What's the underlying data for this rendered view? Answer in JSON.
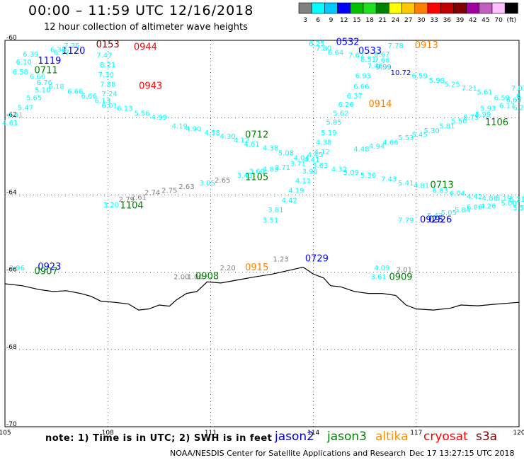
{
  "header": {
    "title": "00:00 – 11:59 UTC 12/16/2018",
    "subtitle": "12 hour collection of altimeter wave heights"
  },
  "color_scale": {
    "unit_label": "(ft)",
    "bins": [
      {
        "label": "3",
        "color": "#808080"
      },
      {
        "label": "6",
        "color": "#00ffff"
      },
      {
        "label": "9",
        "color": "#00c8ff"
      },
      {
        "label": "12",
        "color": "#0000ff"
      },
      {
        "label": "15",
        "color": "#00c000"
      },
      {
        "label": "18",
        "color": "#20e020"
      },
      {
        "label": "21",
        "color": "#008000"
      },
      {
        "label": "24",
        "color": "#ffff00"
      },
      {
        "label": "27",
        "color": "#ffc800"
      },
      {
        "label": "30",
        "color": "#ff8000"
      },
      {
        "label": "33",
        "color": "#ff0000"
      },
      {
        "label": "36",
        "color": "#c00000"
      },
      {
        "label": "39",
        "color": "#800000"
      },
      {
        "label": "42",
        "color": "#a000a0"
      },
      {
        "label": "45",
        "color": "#c060c0"
      },
      {
        "label": "70",
        "color": "#ffc0ff"
      },
      {
        "label": "",
        "color": "#000000"
      }
    ]
  },
  "axes": {
    "lon_min": 105,
    "lon_max": 120,
    "lat_min": -70,
    "lat_max": -60,
    "lon_ticks": [
      {
        "value": 105,
        "label": "105"
      },
      {
        "value": 108,
        "label": "108"
      },
      {
        "value": 111,
        "label": "111"
      },
      {
        "value": 114,
        "label": "114"
      },
      {
        "value": 117,
        "label": "117"
      },
      {
        "value": 120,
        "label": "120"
      }
    ],
    "lat_ticks": [
      {
        "value": -60,
        "label": "-60"
      },
      {
        "value": -62,
        "label": "-62"
      },
      {
        "value": -64,
        "label": "-64"
      },
      {
        "value": -66,
        "label": "-66"
      },
      {
        "value": -68,
        "label": "-68"
      },
      {
        "value": -70,
        "label": "-70"
      }
    ]
  },
  "coastline": [
    [
      105.0,
      -66.3
    ],
    [
      105.5,
      -66.35
    ],
    [
      106.0,
      -66.45
    ],
    [
      106.4,
      -66.5
    ],
    [
      106.8,
      -66.48
    ],
    [
      107.2,
      -66.55
    ],
    [
      107.5,
      -66.62
    ],
    [
      107.8,
      -66.75
    ],
    [
      108.2,
      -66.78
    ],
    [
      108.6,
      -66.82
    ],
    [
      108.9,
      -66.98
    ],
    [
      109.2,
      -66.95
    ],
    [
      109.5,
      -66.85
    ],
    [
      109.8,
      -66.88
    ],
    [
      110.0,
      -66.72
    ],
    [
      110.3,
      -66.55
    ],
    [
      110.6,
      -66.5
    ],
    [
      110.9,
      -66.25
    ],
    [
      111.3,
      -66.28
    ],
    [
      111.8,
      -66.2
    ],
    [
      112.3,
      -66.12
    ],
    [
      112.8,
      -66.05
    ],
    [
      113.3,
      -65.95
    ],
    [
      113.7,
      -65.87
    ],
    [
      114.0,
      -66.05
    ],
    [
      114.3,
      -66.15
    ],
    [
      114.5,
      -66.35
    ],
    [
      114.8,
      -66.38
    ],
    [
      115.2,
      -66.5
    ],
    [
      115.6,
      -66.55
    ],
    [
      116.0,
      -66.55
    ],
    [
      116.4,
      -66.6
    ],
    [
      116.7,
      -66.85
    ],
    [
      117.0,
      -66.95
    ],
    [
      117.5,
      -66.98
    ],
    [
      118.0,
      -66.93
    ],
    [
      118.3,
      -66.85
    ],
    [
      118.8,
      -66.87
    ],
    [
      119.3,
      -66.83
    ],
    [
      119.7,
      -66.8
    ],
    [
      120.0,
      -66.78
    ]
  ],
  "labels": [
    {
      "text": "0153",
      "lon": 108.0,
      "lat": -60.18,
      "color": "#800000"
    },
    {
      "text": "0944",
      "lon": 109.1,
      "lat": -60.25,
      "color": "#ff0000"
    },
    {
      "text": "1120",
      "lon": 107.0,
      "lat": -60.35,
      "color": "#0000ff"
    },
    {
      "text": "1119",
      "lon": 106.3,
      "lat": -60.6,
      "color": "#0000ff"
    },
    {
      "text": "0711",
      "lon": 106.2,
      "lat": -60.85,
      "color": "#008000"
    },
    {
      "text": "0943",
      "lon": 109.25,
      "lat": -61.25,
      "color": "#ff0000"
    },
    {
      "text": "7.25",
      "lon": 106.95,
      "lat": -60.2,
      "color": "#00ffff"
    },
    {
      "text": "6.36",
      "lon": 106.55,
      "lat": -60.3,
      "color": "#00ffff"
    },
    {
      "text": "6.77",
      "lon": 106.65,
      "lat": -60.38,
      "color": "#00ffff"
    },
    {
      "text": "6.39",
      "lon": 105.75,
      "lat": -60.42,
      "color": "#00ffff"
    },
    {
      "text": "6.10",
      "lon": 105.55,
      "lat": -60.62,
      "color": "#00ffff"
    },
    {
      "text": "7.47",
      "lon": 107.9,
      "lat": -60.45,
      "color": "#00ffff"
    },
    {
      "text": "8.21",
      "lon": 108.0,
      "lat": -60.7,
      "color": "#00ffff"
    },
    {
      "text": "7.30",
      "lon": 107.95,
      "lat": -60.95,
      "color": "#00ffff"
    },
    {
      "text": "7.88",
      "lon": 108.0,
      "lat": -61.2,
      "color": "#00ffff"
    },
    {
      "text": "7.24",
      "lon": 108.05,
      "lat": -61.45,
      "color": "#00ffff"
    },
    {
      "text": "6.58",
      "lon": 105.45,
      "lat": -60.88,
      "color": "#00ffff"
    },
    {
      "text": "6.66",
      "lon": 105.95,
      "lat": -61.0,
      "color": "#00ffff"
    },
    {
      "text": "6.76",
      "lon": 106.15,
      "lat": -61.15,
      "color": "#00ffff"
    },
    {
      "text": "6.18",
      "lon": 106.5,
      "lat": -61.25,
      "color": "#00ffff"
    },
    {
      "text": "5.10",
      "lon": 106.1,
      "lat": -61.35,
      "color": "#00ffff"
    },
    {
      "text": "6.66",
      "lon": 107.05,
      "lat": -61.38,
      "color": "#00ffff"
    },
    {
      "text": "6.66",
      "lon": 107.45,
      "lat": -61.5,
      "color": "#00ffff"
    },
    {
      "text": "5.65",
      "lon": 105.85,
      "lat": -61.55,
      "color": "#00ffff"
    },
    {
      "text": "6.13",
      "lon": 107.85,
      "lat": -61.62,
      "color": "#00ffff"
    },
    {
      "text": "6.01",
      "lon": 108.05,
      "lat": -61.75,
      "color": "#00ffff"
    },
    {
      "text": "6.13",
      "lon": 108.5,
      "lat": -61.82,
      "color": "#00ffff"
    },
    {
      "text": "5.47",
      "lon": 105.6,
      "lat": -61.8,
      "color": "#00ffff"
    },
    {
      "text": "5.56",
      "lon": 109.0,
      "lat": -61.95,
      "color": "#00ffff"
    },
    {
      "text": "4.99",
      "lon": 109.5,
      "lat": -62.05,
      "color": "#00ffff"
    },
    {
      "text": "4.41",
      "lon": 105.3,
      "lat": -62.0,
      "color": "#00ffff"
    },
    {
      "text": "4.61",
      "lon": 105.15,
      "lat": -62.2,
      "color": "#00ffff"
    },
    {
      "text": "4.19",
      "lon": 110.1,
      "lat": -62.28,
      "color": "#00ffff"
    },
    {
      "text": "4.90",
      "lon": 110.5,
      "lat": -62.35,
      "color": "#00ffff"
    },
    {
      "text": "4.58",
      "lon": 111.05,
      "lat": -62.45,
      "color": "#00ffff"
    },
    {
      "text": "4.30",
      "lon": 111.5,
      "lat": -62.55,
      "color": "#00ffff"
    },
    {
      "text": "4.12",
      "lon": 111.9,
      "lat": -62.65,
      "color": "#00ffff"
    },
    {
      "text": "0712",
      "lon": 112.35,
      "lat": -62.52,
      "color": "#008000"
    },
    {
      "text": "4.61",
      "lon": 112.2,
      "lat": -62.75,
      "color": "#00ffff"
    },
    {
      "text": "4.38",
      "lon": 112.75,
      "lat": -62.85,
      "color": "#00ffff"
    },
    {
      "text": "5.08",
      "lon": 113.2,
      "lat": -62.98,
      "color": "#00ffff"
    },
    {
      "text": "4.04",
      "lon": 113.65,
      "lat": -63.1,
      "color": "#00ffff"
    },
    {
      "text": "4.41",
      "lon": 113.95,
      "lat": -63.15,
      "color": "#00ffff"
    },
    {
      "text": "3.71",
      "lon": 113.55,
      "lat": -63.25,
      "color": "#00ffff"
    },
    {
      "text": "3.71",
      "lon": 113.1,
      "lat": -63.35,
      "color": "#00ffff"
    },
    {
      "text": "4.83",
      "lon": 112.75,
      "lat": -63.4,
      "color": "#00ffff"
    },
    {
      "text": "3.60",
      "lon": 112.35,
      "lat": -63.45,
      "color": "#00ffff"
    },
    {
      "text": "3.43",
      "lon": 112.0,
      "lat": -63.55,
      "color": "#00ffff"
    },
    {
      "text": "1105",
      "lon": 112.35,
      "lat": -63.62,
      "color": "#008000"
    },
    {
      "text": "3.96",
      "lon": 113.9,
      "lat": -63.45,
      "color": "#00ffff"
    },
    {
      "text": "4.11",
      "lon": 113.7,
      "lat": -63.7,
      "color": "#00ffff"
    },
    {
      "text": "4.19",
      "lon": 113.5,
      "lat": -63.95,
      "color": "#00ffff"
    },
    {
      "text": "4.42",
      "lon": 113.3,
      "lat": -64.2,
      "color": "#00ffff"
    },
    {
      "text": "3.81",
      "lon": 112.9,
      "lat": -64.45,
      "color": "#00ffff"
    },
    {
      "text": "3.51",
      "lon": 112.75,
      "lat": -64.72,
      "color": "#00ffff"
    },
    {
      "text": "3.05",
      "lon": 110.9,
      "lat": -63.75,
      "color": "#00ffff"
    },
    {
      "text": "2.65",
      "lon": 111.35,
      "lat": -63.68,
      "color": "#808080"
    },
    {
      "text": "2.63",
      "lon": 110.3,
      "lat": -63.85,
      "color": "#808080"
    },
    {
      "text": "2.75",
      "lon": 109.8,
      "lat": -63.95,
      "color": "#808080"
    },
    {
      "text": "2.74",
      "lon": 109.3,
      "lat": -64.0,
      "color": "#808080"
    },
    {
      "text": "2.61",
      "lon": 108.9,
      "lat": -64.12,
      "color": "#808080"
    },
    {
      "text": "2.79",
      "lon": 108.55,
      "lat": -64.18,
      "color": "#808080"
    },
    {
      "text": "3.20",
      "lon": 108.1,
      "lat": -64.32,
      "color": "#00ffff"
    },
    {
      "text": "1104",
      "lon": 108.7,
      "lat": -64.35,
      "color": "#008000"
    },
    {
      "text": "6.25",
      "lon": 114.1,
      "lat": -60.15,
      "color": "#00ffff"
    },
    {
      "text": "0532",
      "lon": 115.0,
      "lat": -60.12,
      "color": "#0000ff"
    },
    {
      "text": "7.78",
      "lon": 116.4,
      "lat": -60.2,
      "color": "#00ffff"
    },
    {
      "text": "0913",
      "lon": 117.3,
      "lat": -60.2,
      "color": "#ff8000"
    },
    {
      "text": "7.80",
      "lon": 114.3,
      "lat": -60.27,
      "color": "#00ffff"
    },
    {
      "text": "6.64",
      "lon": 114.65,
      "lat": -60.38,
      "color": "#00ffff"
    },
    {
      "text": "0533",
      "lon": 115.65,
      "lat": -60.35,
      "color": "#0000ff"
    },
    {
      "text": "7.67",
      "lon": 115.25,
      "lat": -60.45,
      "color": "#00ffff"
    },
    {
      "text": "8.67",
      "lon": 116.0,
      "lat": -60.42,
      "color": "#00ffff"
    },
    {
      "text": "8.51",
      "lon": 115.6,
      "lat": -60.55,
      "color": "#00ffff"
    },
    {
      "text": "7.66",
      "lon": 116.0,
      "lat": -60.58,
      "color": "#00ffff"
    },
    {
      "text": "7.46",
      "lon": 115.8,
      "lat": -60.72,
      "color": "#00ffff"
    },
    {
      "text": "9.99",
      "lon": 116.05,
      "lat": -60.75,
      "color": "#00c8ff"
    },
    {
      "text": "10.72",
      "lon": 116.55,
      "lat": -60.9,
      "color": "#0000ff"
    },
    {
      "text": "6.59",
      "lon": 117.1,
      "lat": -60.98,
      "color": "#00ffff"
    },
    {
      "text": "6.93",
      "lon": 115.45,
      "lat": -60.98,
      "color": "#00ffff"
    },
    {
      "text": "5.98",
      "lon": 117.6,
      "lat": -61.1,
      "color": "#00ffff"
    },
    {
      "text": "5.25",
      "lon": 118.05,
      "lat": -61.2,
      "color": "#00ffff"
    },
    {
      "text": "6.66",
      "lon": 115.4,
      "lat": -61.25,
      "color": "#00ffff"
    },
    {
      "text": "7.21",
      "lon": 118.55,
      "lat": -61.3,
      "color": "#00ffff"
    },
    {
      "text": "6.37",
      "lon": 115.2,
      "lat": -61.5,
      "color": "#00ffff"
    },
    {
      "text": "5.61",
      "lon": 119.0,
      "lat": -61.4,
      "color": "#00ffff"
    },
    {
      "text": "7.03",
      "lon": 120.0,
      "lat": -61.3,
      "color": "#00ffff"
    },
    {
      "text": "6.59",
      "lon": 119.5,
      "lat": -61.55,
      "color": "#00ffff"
    },
    {
      "text": "6.69",
      "lon": 119.85,
      "lat": -61.6,
      "color": "#00ffff"
    },
    {
      "text": "6.11",
      "lon": 120.15,
      "lat": -61.5,
      "color": "#00ffff"
    },
    {
      "text": "6.26",
      "lon": 114.95,
      "lat": -61.72,
      "color": "#00ffff"
    },
    {
      "text": "0914",
      "lon": 115.95,
      "lat": -61.72,
      "color": "#ff8000"
    },
    {
      "text": "5.93",
      "lon": 119.1,
      "lat": -61.82,
      "color": "#00ffff"
    },
    {
      "text": "6.17",
      "lon": 119.65,
      "lat": -61.75,
      "color": "#00ffff"
    },
    {
      "text": "6.29",
      "lon": 120.05,
      "lat": -61.8,
      "color": "#00ffff"
    },
    {
      "text": "5.76",
      "lon": 120.4,
      "lat": -61.9,
      "color": "#00ffff"
    },
    {
      "text": "5.62",
      "lon": 114.8,
      "lat": -61.95,
      "color": "#00ffff"
    },
    {
      "text": "6.75",
      "lon": 118.6,
      "lat": -62.05,
      "color": "#00ffff"
    },
    {
      "text": "5.99",
      "lon": 118.95,
      "lat": -61.98,
      "color": "#00ffff"
    },
    {
      "text": "5.50",
      "lon": 118.25,
      "lat": -62.15,
      "color": "#00ffff"
    },
    {
      "text": "1106",
      "lon": 119.35,
      "lat": -62.2,
      "color": "#008000"
    },
    {
      "text": "5.85",
      "lon": 114.6,
      "lat": -62.18,
      "color": "#00ffff"
    },
    {
      "text": "5.81",
      "lon": 117.9,
      "lat": -62.28,
      "color": "#00ffff"
    },
    {
      "text": "5.30",
      "lon": 117.45,
      "lat": -62.4,
      "color": "#00ffff"
    },
    {
      "text": "5.45",
      "lon": 117.1,
      "lat": -62.5,
      "color": "#00ffff"
    },
    {
      "text": "5.19",
      "lon": 114.45,
      "lat": -62.45,
      "color": "#00ffff"
    },
    {
      "text": "5.53",
      "lon": 116.7,
      "lat": -62.58,
      "color": "#00ffff"
    },
    {
      "text": "4.66",
      "lon": 116.25,
      "lat": -62.7,
      "color": "#00ffff"
    },
    {
      "text": "4.38",
      "lon": 114.3,
      "lat": -62.7,
      "color": "#00ffff"
    },
    {
      "text": "4.94",
      "lon": 115.85,
      "lat": -62.8,
      "color": "#00ffff"
    },
    {
      "text": "4.48",
      "lon": 115.4,
      "lat": -62.88,
      "color": "#00ffff"
    },
    {
      "text": "4.12",
      "lon": 114.25,
      "lat": -62.95,
      "color": "#00ffff"
    },
    {
      "text": "4.45",
      "lon": 114.05,
      "lat": -63.02,
      "color": "#00ffff"
    },
    {
      "text": "3.63",
      "lon": 114.2,
      "lat": -63.3,
      "color": "#00ffff"
    },
    {
      "text": "4.32",
      "lon": 114.75,
      "lat": -63.4,
      "color": "#00ffff"
    },
    {
      "text": "5.09",
      "lon": 115.1,
      "lat": -63.48,
      "color": "#00ffff"
    },
    {
      "text": "5.36",
      "lon": 115.6,
      "lat": -63.55,
      "color": "#00ffff"
    },
    {
      "text": "7.43",
      "lon": 116.2,
      "lat": -63.65,
      "color": "#00ffff"
    },
    {
      "text": "5.41",
      "lon": 116.7,
      "lat": -63.75,
      "color": "#00ffff"
    },
    {
      "text": "4.81",
      "lon": 117.15,
      "lat": -63.82,
      "color": "#00ffff"
    },
    {
      "text": "0713",
      "lon": 117.75,
      "lat": -63.82,
      "color": "#008000"
    },
    {
      "text": "6.63",
      "lon": 117.7,
      "lat": -63.95,
      "color": "#00ffff"
    },
    {
      "text": "6.04",
      "lon": 118.2,
      "lat": -64.02,
      "color": "#00ffff"
    },
    {
      "text": "4.42",
      "lon": 118.7,
      "lat": -64.1,
      "color": "#00ffff"
    },
    {
      "text": "4.86",
      "lon": 119.15,
      "lat": -64.15,
      "color": "#00ffff"
    },
    {
      "text": "5.19",
      "lon": 119.55,
      "lat": -64.15,
      "color": "#00ffff"
    },
    {
      "text": "5.21",
      "lon": 119.95,
      "lat": -64.18,
      "color": "#00ffff"
    },
    {
      "text": "5.00",
      "lon": 119.7,
      "lat": -64.28,
      "color": "#00ffff"
    },
    {
      "text": "4.26",
      "lon": 119.1,
      "lat": -64.35,
      "color": "#00ffff"
    },
    {
      "text": "6.06",
      "lon": 118.7,
      "lat": -64.38,
      "color": "#00ffff"
    },
    {
      "text": "5.84",
      "lon": 118.35,
      "lat": -64.45,
      "color": "#00ffff"
    },
    {
      "text": "5.50",
      "lon": 120.05,
      "lat": -64.4,
      "color": "#00ffff"
    },
    {
      "text": "5.05",
      "lon": 117.95,
      "lat": -64.52,
      "color": "#00ffff"
    },
    {
      "text": "5.42",
      "lon": 117.55,
      "lat": -64.6,
      "color": "#00ffff"
    },
    {
      "text": "7.79",
      "lon": 116.7,
      "lat": -64.72,
      "color": "#00ffff"
    },
    {
      "text": "0925",
      "lon": 117.45,
      "lat": -64.72,
      "color": "#0000ff"
    },
    {
      "text": "0926",
      "lon": 117.7,
      "lat": -64.72,
      "color": "#0000ff"
    },
    {
      "text": "1.23",
      "lon": 113.05,
      "lat": -65.72,
      "color": "#808080"
    },
    {
      "text": "0729",
      "lon": 114.1,
      "lat": -65.72,
      "color": "#0000ff"
    },
    {
      "text": "2.20",
      "lon": 111.5,
      "lat": -65.95,
      "color": "#808080"
    },
    {
      "text": "0915",
      "lon": 112.35,
      "lat": -65.95,
      "color": "#ff8000"
    },
    {
      "text": "2.00",
      "lon": 110.15,
      "lat": -66.18,
      "color": "#808080"
    },
    {
      "text": "1.00",
      "lon": 110.55,
      "lat": -66.18,
      "color": "#808080"
    },
    {
      "text": "0908",
      "lon": 110.9,
      "lat": -66.18,
      "color": "#008000"
    },
    {
      "text": "4.09",
      "lon": 116.0,
      "lat": -65.95,
      "color": "#00ffff"
    },
    {
      "text": "2.01",
      "lon": 116.65,
      "lat": -66.0,
      "color": "#808080"
    },
    {
      "text": "3.61",
      "lon": 115.9,
      "lat": -66.18,
      "color": "#00ffff"
    },
    {
      "text": "0909",
      "lon": 116.55,
      "lat": -66.2,
      "color": "#008000"
    },
    {
      "text": "3.96",
      "lon": 105.35,
      "lat": -65.95,
      "color": "#00ffff"
    },
    {
      "text": "0923",
      "lon": 106.3,
      "lat": -65.93,
      "color": "#0000ff"
    },
    {
      "text": "0907",
      "lon": 106.2,
      "lat": -66.05,
      "color": "#008000"
    }
  ],
  "footer": {
    "note": "note:  1) Time is in UTC;  2) SWH is in feet",
    "satellites": [
      {
        "name": "jason2",
        "color": "#0000cc"
      },
      {
        "name": "jason3",
        "color": "#008000"
      },
      {
        "name": "altika",
        "color": "#ff9000"
      },
      {
        "name": "cryosat",
        "color": "#ff0000"
      },
      {
        "name": "s3a",
        "color": "#800000"
      }
    ],
    "credit": "NOAA/NESDIS Center for Satellite Applications and Research",
    "timestamp": "Dec 17 13:27:15 UTC 2018"
  }
}
